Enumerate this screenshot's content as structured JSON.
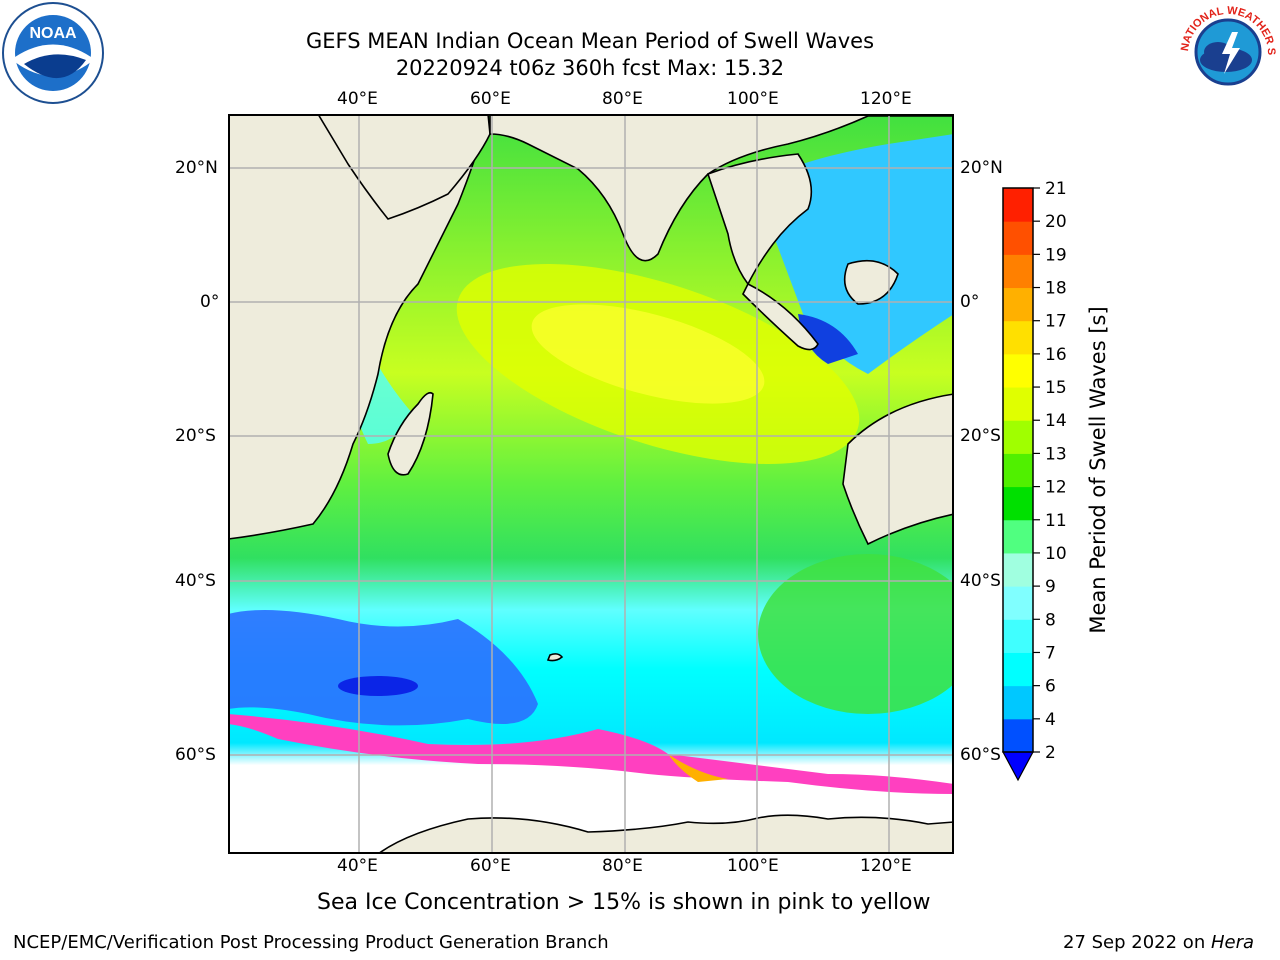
{
  "title": {
    "line1": "GEFS MEAN Indian Ocean Mean Period of Swell Waves",
    "line2": "20220924 t06z 360h fcst   Max: 15.32"
  },
  "logos": {
    "left": {
      "icon": "noaa-logo",
      "text": "NOAA"
    },
    "right": {
      "icon": "nws-logo",
      "text": "NATIONAL WEATHER SERVICE"
    }
  },
  "axes": {
    "lon_ticks": [
      "40°E",
      "60°E",
      "80°E",
      "100°E",
      "120°E"
    ],
    "lat_ticks_left": [
      "20°N",
      "0°",
      "20°S",
      "40°S",
      "60°S"
    ],
    "lat_ticks_right": [
      "20°N",
      "0°",
      "20°S",
      "40°S",
      "60°S"
    ],
    "lon_range": [
      20,
      130
    ],
    "lat_range": [
      -70,
      28
    ]
  },
  "colorbar": {
    "label": "Mean Period of Swell Waves [s]",
    "ticks": [
      "2",
      "4",
      "6",
      "7",
      "8",
      "9",
      "10",
      "11",
      "12",
      "13",
      "14",
      "15",
      "16",
      "17",
      "18",
      "19",
      "20",
      "21"
    ],
    "colors": [
      "#0050ff",
      "#00c8ff",
      "#00ffff",
      "#40ffff",
      "#80ffff",
      "#a0ffe0",
      "#50ff80",
      "#00e000",
      "#50f000",
      "#a0ff00",
      "#e0ff00",
      "#ffff00",
      "#ffe000",
      "#ffb000",
      "#ff8000",
      "#ff5000",
      "#ff2000",
      "#ff0000"
    ],
    "under_color": "#0000ff"
  },
  "caption": "Sea Ice Concentration > 15% is shown in pink to yellow",
  "footer": {
    "left": "NCEP/EMC/Verification Post Processing Product Generation Branch",
    "right_date": "27 Sep 2022 on",
    "right_host": "Hera"
  }
}
